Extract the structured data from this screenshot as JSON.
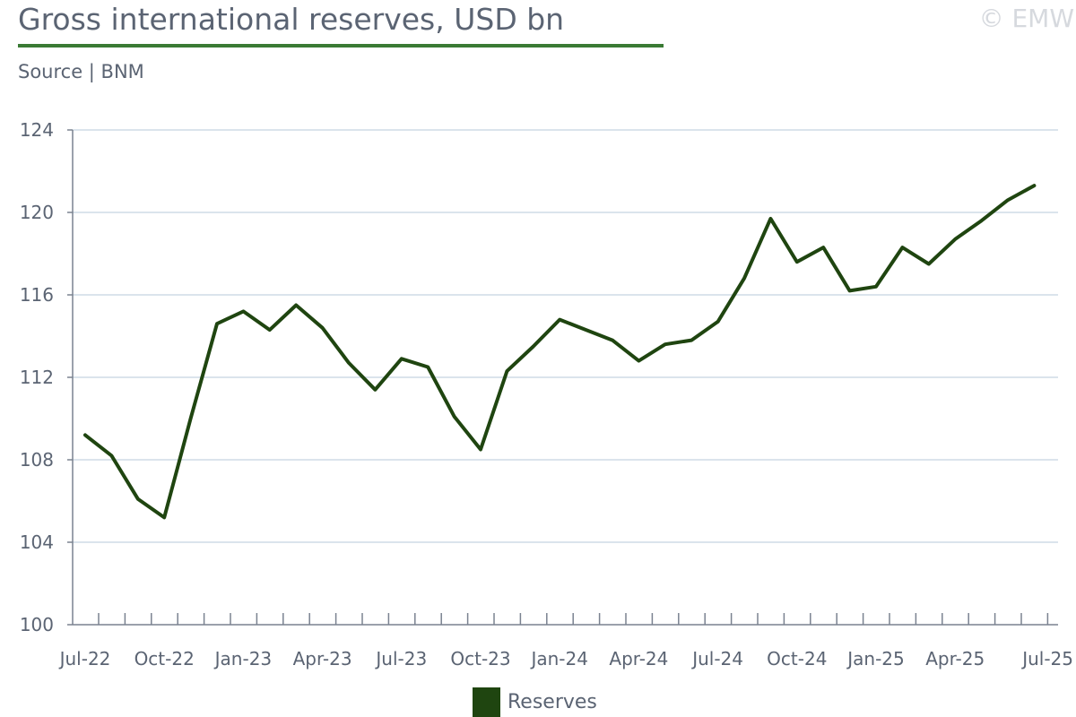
{
  "header": {
    "title": "Gross international reserves, USD bn",
    "source": "Source | BNM",
    "watermark": "© EMW"
  },
  "colors": {
    "accent": "#3a7a34",
    "series": "#1f4510",
    "grid": "#dbe4ec",
    "axis": "#7a8290"
  },
  "chart_data": {
    "type": "line",
    "title": "Gross international reserves, USD bn",
    "subtitle": "Source | BNM",
    "xlabel": "",
    "ylabel": "",
    "x": [
      "2022-07",
      "2022-08",
      "2022-09",
      "2022-10",
      "2022-11",
      "2022-12",
      "2023-01",
      "2023-02",
      "2023-03",
      "2023-04",
      "2023-05",
      "2023-06",
      "2023-07",
      "2023-08",
      "2023-09",
      "2023-10",
      "2023-11",
      "2023-12",
      "2024-01",
      "2024-02",
      "2024-03",
      "2024-04",
      "2024-05",
      "2024-06",
      "2024-07",
      "2024-08",
      "2024-09",
      "2024-10",
      "2024-11",
      "2024-12",
      "2025-01",
      "2025-02",
      "2025-03",
      "2025-04",
      "2025-05",
      "2025-06",
      "2025-07"
    ],
    "x_tick_labels": [
      "Jul-22",
      "Oct-22",
      "Jan-23",
      "Apr-23",
      "Jul-23",
      "Oct-23",
      "Jan-24",
      "Apr-24",
      "Jul-24",
      "Oct-24",
      "Jan-25",
      "Apr-25",
      "Jul-25"
    ],
    "series": [
      {
        "name": "Reserves",
        "values": [
          109.2,
          108.2,
          106.1,
          105.2,
          110.0,
          114.6,
          115.2,
          114.3,
          115.5,
          114.4,
          112.7,
          111.4,
          112.9,
          112.5,
          110.1,
          108.5,
          112.3,
          113.5,
          114.8,
          114.3,
          113.8,
          112.8,
          113.6,
          113.8,
          114.7,
          116.8,
          119.7,
          117.6,
          118.3,
          116.2,
          116.4,
          118.3,
          117.5,
          118.7,
          119.6,
          120.6,
          121.3
        ]
      }
    ],
    "ylim": [
      100,
      124
    ],
    "y_ticks": [
      100,
      104,
      108,
      112,
      116,
      120,
      124
    ],
    "grid": "horizontal",
    "legend": "bottom-center"
  }
}
